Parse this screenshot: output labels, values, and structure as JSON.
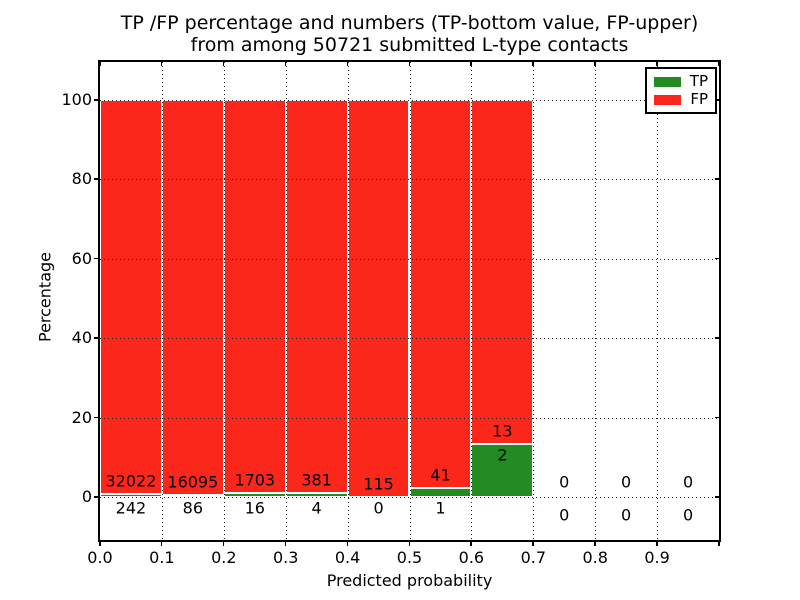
{
  "title": {
    "line1": "TP /FP percentage and numbers (TP-bottom value, FP-upper)",
    "line2": "from among 50721 submitted L-type contacts"
  },
  "axes": {
    "xlabel": "Predicted probability",
    "ylabel": "Percentage",
    "x_tick_labels": [
      "0.0",
      "0.1",
      "0.2",
      "0.3",
      "0.4",
      "0.5",
      "0.6",
      "0.7",
      "0.8",
      "0.9"
    ],
    "y_tick_labels": [
      "0",
      "20",
      "40",
      "60",
      "80",
      "100"
    ],
    "y_tick_values": [
      0,
      20,
      40,
      60,
      80,
      100
    ]
  },
  "legend": {
    "items": [
      {
        "label": "TP",
        "color": "#228b22"
      },
      {
        "label": "FP",
        "color": "#fa271a"
      }
    ]
  },
  "colors": {
    "tp": "#228b22",
    "fp": "#fa271a",
    "grid": "#222222",
    "spine": "#000000",
    "bar_edge": "#ffffff",
    "text": "#000000"
  },
  "chart_data": {
    "type": "bar",
    "stacked_percentage": true,
    "title": "TP /FP percentage and numbers (TP-bottom value, FP-upper)\nfrom among 50721 submitted L-type contacts",
    "xlabel": "Predicted probability",
    "ylabel": "Percentage",
    "xlim": [
      0.0,
      1.0
    ],
    "ylim_pct": [
      -11,
      110
    ],
    "grid": true,
    "legend_position": "upper right",
    "total_contacts": 50721,
    "bin_width": 0.1,
    "bins": [
      {
        "x_start": 0.0,
        "x_end": 0.1,
        "tp_count": 242,
        "fp_count": 32022
      },
      {
        "x_start": 0.1,
        "x_end": 0.2,
        "tp_count": 86,
        "fp_count": 16095
      },
      {
        "x_start": 0.2,
        "x_end": 0.3,
        "tp_count": 16,
        "fp_count": 1703
      },
      {
        "x_start": 0.3,
        "x_end": 0.4,
        "tp_count": 4,
        "fp_count": 381
      },
      {
        "x_start": 0.4,
        "x_end": 0.5,
        "tp_count": 0,
        "fp_count": 115
      },
      {
        "x_start": 0.5,
        "x_end": 0.6,
        "tp_count": 1,
        "fp_count": 41
      },
      {
        "x_start": 0.6,
        "x_end": 0.7,
        "tp_count": 2,
        "fp_count": 13
      },
      {
        "x_start": 0.7,
        "x_end": 0.8,
        "tp_count": 0,
        "fp_count": 0
      },
      {
        "x_start": 0.8,
        "x_end": 0.9,
        "tp_count": 0,
        "fp_count": 0
      },
      {
        "x_start": 0.9,
        "x_end": 1.0,
        "tp_count": 0,
        "fp_count": 0
      }
    ]
  }
}
